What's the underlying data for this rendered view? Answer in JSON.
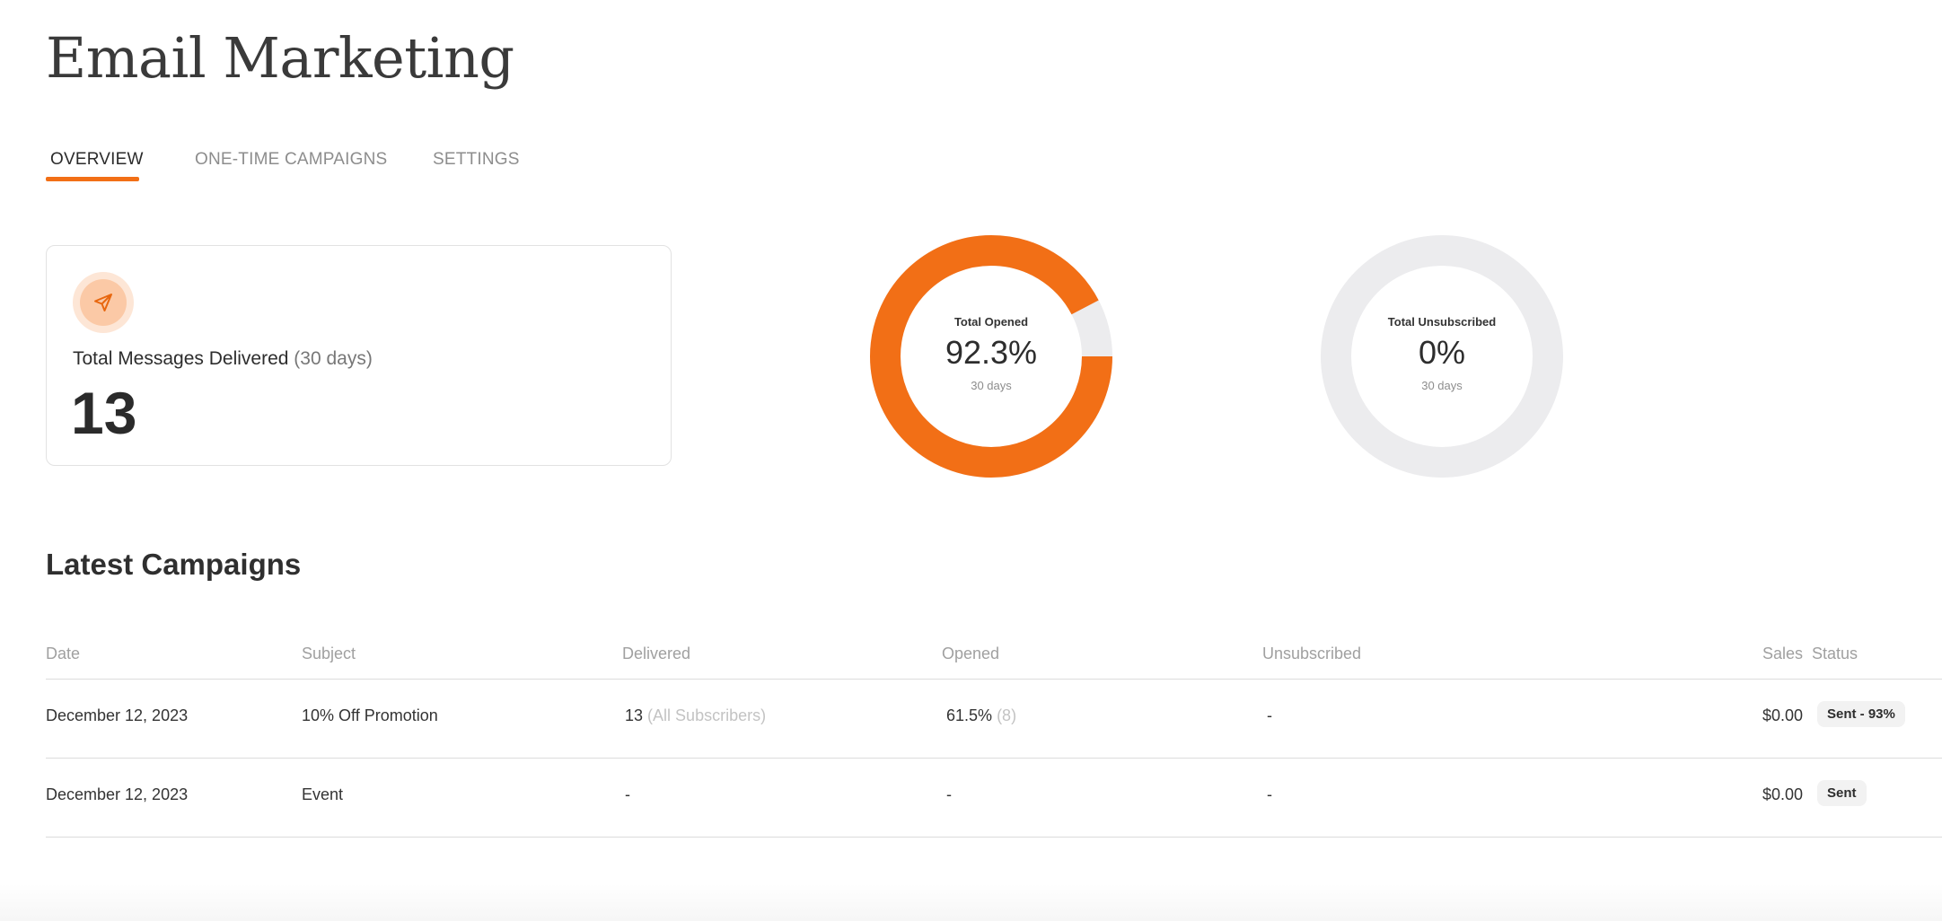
{
  "page": {
    "title": "Email Marketing"
  },
  "tabs": [
    {
      "label": "OVERVIEW",
      "active": true
    },
    {
      "label": "ONE-TIME CAMPAIGNS",
      "active": false
    },
    {
      "label": "SETTINGS",
      "active": false
    }
  ],
  "stat_card": {
    "icon": "send-icon",
    "label": "Total Messages Delivered",
    "period": "(30 days)",
    "value": "13"
  },
  "donuts": [
    {
      "label": "Total Opened",
      "value": "92.3%",
      "sub": "30 days",
      "fraction": 0.923
    },
    {
      "label": "Total Unsubscribed",
      "value": "0%",
      "sub": "30 days",
      "fraction": 0
    }
  ],
  "campaigns": {
    "title": "Latest Campaigns",
    "columns": {
      "date": "Date",
      "subject": "Subject",
      "delivered": "Delivered",
      "opened": "Opened",
      "unsubscribed": "Unsubscribed",
      "sales": "Sales",
      "status": "Status"
    },
    "rows": [
      {
        "date": "December 12, 2023",
        "subject": "10% Off Promotion",
        "delivered": "13",
        "delivered_note": "(All Subscribers)",
        "opened": "61.5%",
        "opened_note": "(8)",
        "unsubscribed": "-",
        "sales": "$0.00",
        "status": "Sent - 93%"
      },
      {
        "date": "December 12, 2023",
        "subject": "Event",
        "delivered": "-",
        "delivered_note": "",
        "opened": "-",
        "opened_note": "",
        "unsubscribed": "-",
        "sales": "$0.00",
        "status": "Sent"
      }
    ]
  },
  "colors": {
    "accent": "#f26f16",
    "track": "#ececee",
    "icon_bg": "#fde6d6"
  }
}
